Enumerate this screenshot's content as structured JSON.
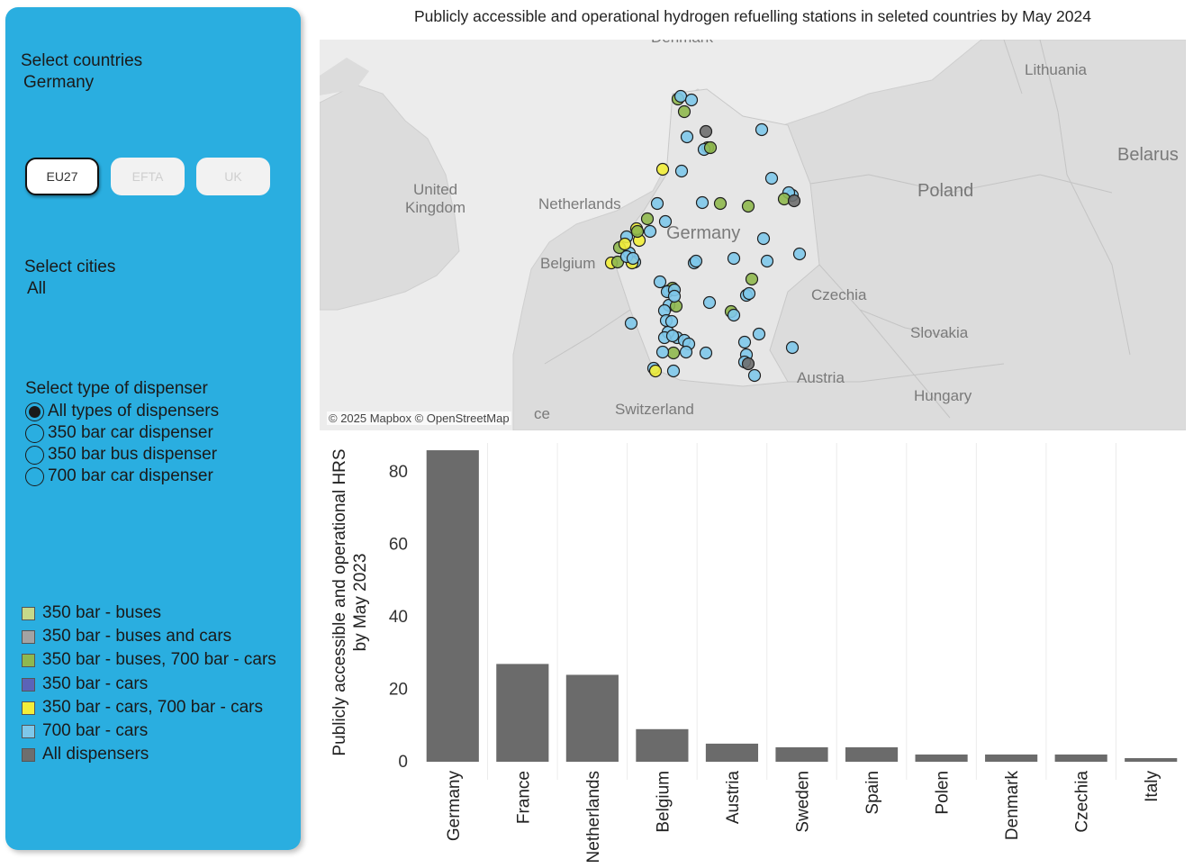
{
  "sidebar": {
    "countries_label": "Select countries",
    "countries_value": "Germany",
    "regions": [
      "EU27",
      "EFTA",
      "UK"
    ],
    "active_region": "EU27",
    "cities_label": "Select cities",
    "cities_value": "All",
    "dispenser_label": "Select type of dispenser",
    "dispenser_options": [
      "All types of dispensers",
      "350 bar car dispenser",
      "350 bar bus dispenser",
      "700 bar car dispenser"
    ],
    "selected_dispenser": "All types of dispensers"
  },
  "legend": [
    {
      "label": "350 bar - buses",
      "color": "#c7d98a"
    },
    {
      "label": "350 bar - buses and cars",
      "color": "#a3a3a3"
    },
    {
      "label": "350 bar - buses, 700 bar - cars",
      "color": "#8fb84e"
    },
    {
      "label": "350 bar - cars",
      "color": "#5b63b8"
    },
    {
      "label": "350 bar - cars, 700 bar - cars",
      "color": "#f2ee3a"
    },
    {
      "label": "700 bar - cars",
      "color": "#7ec8ea"
    },
    {
      "label": "All dispensers",
      "color": "#6e6e6e"
    }
  ],
  "map": {
    "title": "Publicly accessible and operational hydrogen refuelling stations in seleted countries by May 2024",
    "attribution": "© 2025 Mapbox © OpenStreetMap",
    "labels": {
      "uk": "United\nKingdom",
      "netherlands": "Netherlands",
      "belgium": "Belgium",
      "germany": "Germany",
      "poland": "Poland",
      "czechia": "Czechia",
      "slovakia": "Slovakia",
      "austria": "Austria",
      "hungary": "Hungary",
      "switzerland": "Switzerland",
      "lithuania": "Lithuania",
      "belarus": "Belarus",
      "denmark_partial": "Denmark",
      "france_partial": "ce"
    }
  },
  "chart_data": {
    "type": "bar",
    "categories": [
      "Germany",
      "France",
      "Netherlands",
      "Belgium",
      "Austria",
      "Sweden",
      "Spain",
      "Polen",
      "Denmark",
      "Czechia",
      "Italy"
    ],
    "values": [
      86,
      27,
      24,
      9,
      5,
      4,
      4,
      2,
      2,
      2,
      1
    ],
    "ylabel": "Publicly accessible and operational HRS by May 2023",
    "xlabel": "",
    "yticks": [
      0,
      20,
      40,
      60,
      80
    ],
    "ylim": [
      0,
      88
    ],
    "bar_color": "#6b6b6b",
    "grid": "vertical separators"
  }
}
